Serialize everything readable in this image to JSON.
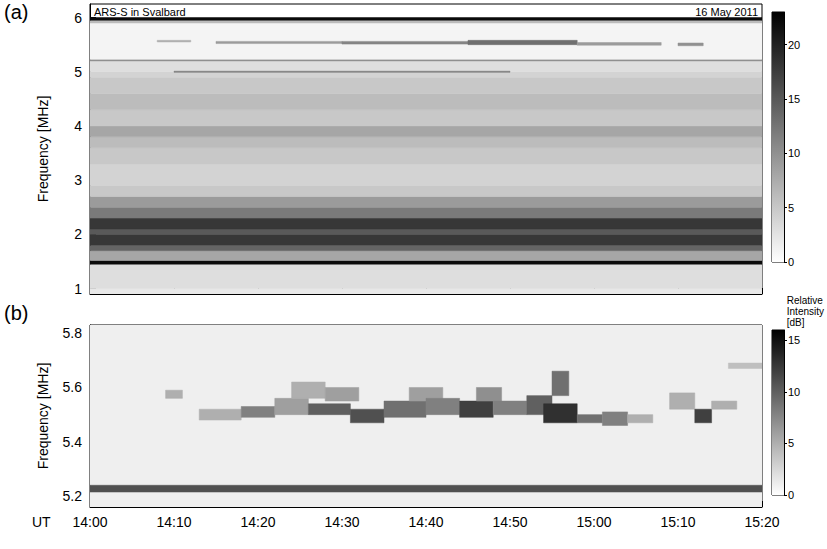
{
  "chart_data": [
    {
      "type": "heatmap",
      "panel_label": "(a)",
      "title": "ARS-S in Svalbard",
      "subtitle": "16 May 2011",
      "y_label": "Frequency [MHz]",
      "xlim": [
        840,
        920
      ],
      "xticks": [
        840,
        850,
        860,
        870,
        880,
        890,
        900,
        910,
        920
      ],
      "ylim": [
        0.9,
        6.25
      ],
      "yticks": [
        1,
        2,
        3,
        4,
        5,
        6
      ],
      "tick_labels": "y",
      "cells": [
        [
          840,
          920,
          0.9,
          1.0,
          2
        ],
        [
          840,
          920,
          1.0,
          1.45,
          3
        ],
        [
          840,
          920,
          1.45,
          1.52,
          22
        ],
        [
          840,
          920,
          1.52,
          1.7,
          8
        ],
        [
          840,
          920,
          1.7,
          1.8,
          14
        ],
        [
          840,
          920,
          1.8,
          2.0,
          18
        ],
        [
          840,
          920,
          2.0,
          2.1,
          15
        ],
        [
          840,
          920,
          2.1,
          2.3,
          18
        ],
        [
          840,
          920,
          2.3,
          2.5,
          12
        ],
        [
          840,
          920,
          2.5,
          2.7,
          9
        ],
        [
          840,
          920,
          2.7,
          2.9,
          5
        ],
        [
          840,
          920,
          2.9,
          3.3,
          4
        ],
        [
          840,
          920,
          3.3,
          3.6,
          5
        ],
        [
          840,
          920,
          3.6,
          3.8,
          6
        ],
        [
          840,
          920,
          3.8,
          4.0,
          8
        ],
        [
          840,
          920,
          4.0,
          4.3,
          5
        ],
        [
          840,
          920,
          4.3,
          4.6,
          6
        ],
        [
          840,
          920,
          4.6,
          4.9,
          5
        ],
        [
          840,
          920,
          4.9,
          5.0,
          4
        ],
        [
          840,
          920,
          5.0,
          5.2,
          3
        ],
        [
          840,
          920,
          5.2,
          5.23,
          10
        ],
        [
          840,
          920,
          5.23,
          5.9,
          1
        ],
        [
          840,
          920,
          5.9,
          5.95,
          6
        ],
        [
          840,
          920,
          5.95,
          6.0,
          22
        ],
        [
          850,
          890,
          4.99,
          5.01,
          12
        ],
        [
          848,
          852,
          5.55,
          5.58,
          7
        ],
        [
          855,
          870,
          5.52,
          5.56,
          9
        ],
        [
          870,
          885,
          5.51,
          5.56,
          11
        ],
        [
          885,
          898,
          5.5,
          5.58,
          13
        ],
        [
          898,
          908,
          5.49,
          5.54,
          9
        ],
        [
          910,
          913,
          5.48,
          5.53,
          10
        ]
      ],
      "colorbar": {
        "range": [
          0,
          23
        ],
        "ticks": [
          0,
          5,
          10,
          15,
          20
        ]
      }
    },
    {
      "type": "heatmap",
      "panel_label": "(b)",
      "x_label": "UT",
      "y_label": "Frequency [MHz]",
      "xlim": [
        840,
        920
      ],
      "xticks": [
        {
          "value": 840,
          "label": "14:00"
        },
        {
          "value": 850,
          "label": "14:10"
        },
        {
          "value": 860,
          "label": "14:20"
        },
        {
          "value": 870,
          "label": "14:30"
        },
        {
          "value": 880,
          "label": "14:40"
        },
        {
          "value": 890,
          "label": "14:50"
        },
        {
          "value": 900,
          "label": "15:00"
        },
        {
          "value": 910,
          "label": "15:10"
        },
        {
          "value": 920,
          "label": "15:20"
        }
      ],
      "ylim": [
        5.16,
        5.83
      ],
      "yticks": [
        5.2,
        5.4,
        5.6,
        5.8
      ],
      "tick_labels": true,
      "cells": [
        [
          840,
          920,
          5.16,
          5.83,
          1
        ],
        [
          840,
          920,
          5.215,
          5.24,
          11
        ],
        [
          849,
          851,
          5.56,
          5.59,
          5
        ],
        [
          853,
          858,
          5.48,
          5.52,
          5
        ],
        [
          858,
          862,
          5.49,
          5.53,
          8
        ],
        [
          862,
          866,
          5.5,
          5.56,
          6
        ],
        [
          864,
          868,
          5.56,
          5.62,
          5
        ],
        [
          866,
          871,
          5.5,
          5.54,
          10
        ],
        [
          868,
          872,
          5.55,
          5.6,
          6
        ],
        [
          871,
          875,
          5.47,
          5.52,
          11
        ],
        [
          875,
          880,
          5.49,
          5.55,
          9
        ],
        [
          878,
          882,
          5.55,
          5.6,
          6
        ],
        [
          880,
          884,
          5.5,
          5.56,
          8
        ],
        [
          884,
          888,
          5.49,
          5.55,
          12
        ],
        [
          886,
          889,
          5.55,
          5.6,
          7
        ],
        [
          888,
          892,
          5.5,
          5.55,
          8
        ],
        [
          892,
          895,
          5.5,
          5.57,
          10
        ],
        [
          894,
          898,
          5.47,
          5.54,
          13
        ],
        [
          895,
          897,
          5.57,
          5.66,
          9
        ],
        [
          898,
          901,
          5.47,
          5.5,
          9
        ],
        [
          901,
          904,
          5.46,
          5.51,
          8
        ],
        [
          904,
          907,
          5.47,
          5.5,
          5
        ],
        [
          909,
          912,
          5.52,
          5.58,
          5
        ],
        [
          912,
          914,
          5.47,
          5.52,
          12
        ],
        [
          914,
          917,
          5.52,
          5.55,
          5
        ],
        [
          916,
          920,
          5.67,
          5.69,
          4
        ]
      ],
      "colorbar": {
        "label": "Relative Intensity [dB]",
        "range": [
          0,
          16
        ],
        "ticks": [
          0,
          5,
          10,
          15
        ]
      }
    }
  ]
}
